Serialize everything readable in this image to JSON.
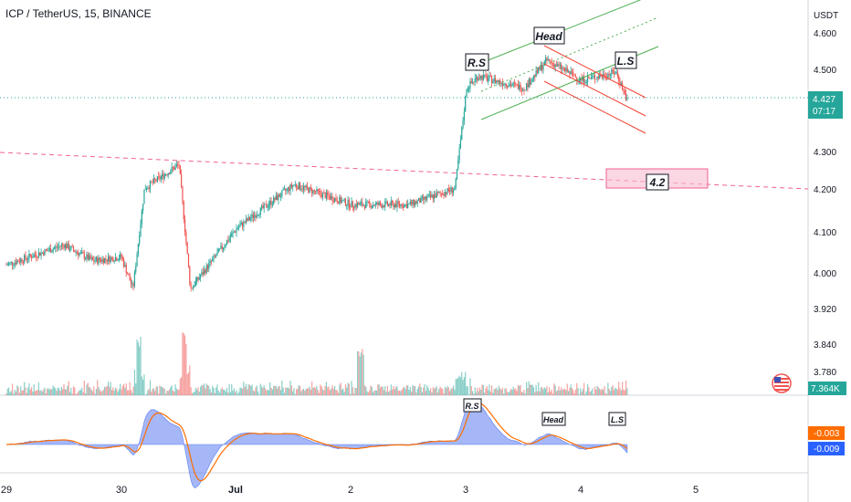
{
  "header": {
    "title": "ICP / TetherUS, 15, BINANCE"
  },
  "colors": {
    "up": "#26a69a",
    "down": "#ef5350",
    "channel_green": "#4caf50",
    "channel_red": "#f44336",
    "support": "#f06292",
    "macd_area": "#5b7cf0",
    "signal": "#ff6d00",
    "price_badge": "#26a69a",
    "volume_badge": "#26a69a",
    "macd_badge": "#ff6d00",
    "signal_badge": "#2962ff"
  },
  "chart_data": {
    "type": "candlestick",
    "title": "ICP / TetherUS, 15, BINANCE",
    "y_unit": "USDT",
    "y_ticks": [
      "4.600",
      "4.500",
      "4.300",
      "4.200",
      "4.100",
      "4.000",
      "3.920",
      "3.840",
      "3.780"
    ],
    "x_ticks": [
      "29",
      "30",
      "Jul",
      "2",
      "3",
      "4",
      "5"
    ],
    "price_path": [
      {
        "x": "29",
        "close": 4.02
      },
      {
        "x": "29.5",
        "close": 4.07
      },
      {
        "x": "29.75",
        "close": 4.03
      },
      {
        "x": "30",
        "close": 4.04
      },
      {
        "x": "30.1",
        "close": 3.96
      },
      {
        "x": "30.2",
        "close": 4.21
      },
      {
        "x": "30.5",
        "close": 4.27
      },
      {
        "x": "30.6",
        "close": 3.96
      },
      {
        "x": "Jul",
        "close": 4.11
      },
      {
        "x": "1.5",
        "close": 4.22
      },
      {
        "x": "2",
        "close": 4.17
      },
      {
        "x": "2.5",
        "close": 4.17
      },
      {
        "x": "2.9",
        "close": 4.21
      },
      {
        "x": "3",
        "close": 4.46
      },
      {
        "x": "3.1",
        "close": 4.49
      },
      {
        "x": "3.5",
        "close": 4.46
      },
      {
        "x": "3.7",
        "close": 4.53
      },
      {
        "x": "4",
        "close": 4.48
      },
      {
        "x": "4.3",
        "close": 4.5
      },
      {
        "x": "4.4",
        "close": 4.427
      }
    ],
    "current_price": "4.427",
    "countdown": "07:17",
    "volume_label": "7.364K",
    "macd_values": [
      "-0.003",
      "-0.009"
    ],
    "annotations": [
      {
        "text": "R.S",
        "pane": "price"
      },
      {
        "text": "Head",
        "pane": "price"
      },
      {
        "text": "L.S",
        "pane": "price"
      },
      {
        "text": "4.2",
        "pane": "price"
      },
      {
        "text": "R.S",
        "pane": "macd"
      },
      {
        "text": "Head",
        "pane": "macd"
      },
      {
        "text": "L.S",
        "pane": "macd"
      }
    ],
    "grid": false,
    "legend": "none"
  }
}
